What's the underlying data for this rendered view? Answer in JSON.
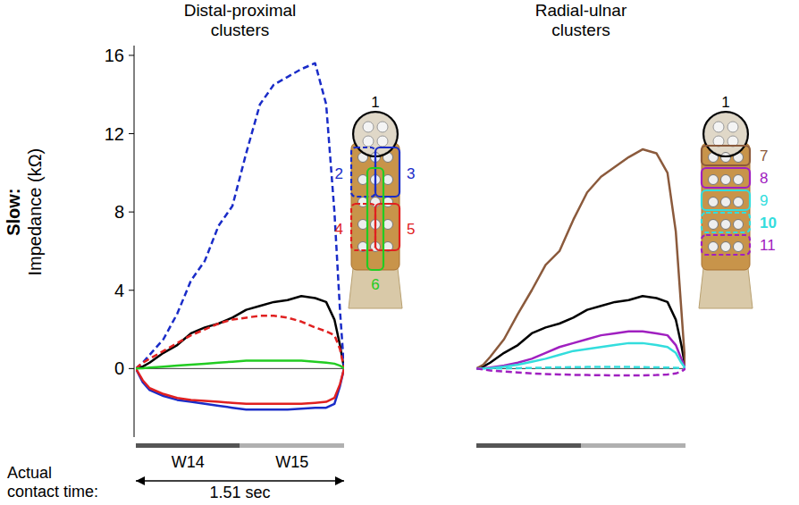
{
  "chart_data": [
    {
      "type": "line",
      "title": "Distal-proximal clusters",
      "ylabel": "Slow: Impedance (kΩ)",
      "x": [
        0,
        0.05,
        0.1,
        0.2,
        0.3,
        0.4,
        0.5,
        0.6,
        0.7,
        0.8,
        0.9,
        1.0,
        1.1,
        1.2,
        1.3,
        1.38,
        1.44,
        1.48,
        1.51
      ],
      "xlim": [
        0,
        1.51
      ],
      "ylim": [
        -3.5,
        16.5
      ],
      "yticks": [
        0,
        4,
        8,
        12,
        16
      ],
      "tick_labels": "y",
      "phases": [
        {
          "label": "W14",
          "start": 0,
          "end": 0.755
        },
        {
          "label": "W15",
          "start": 0.755,
          "end": 1.51
        }
      ],
      "contact_time": {
        "label": "Actual contact time:",
        "value": 1.51,
        "value_label": "1.51 sec"
      },
      "series": [
        {
          "name": "1",
          "color": "#000000",
          "line_style": "solid",
          "values": [
            0,
            0.1,
            0.3,
            0.8,
            1.2,
            1.8,
            2.1,
            2.3,
            2.6,
            3.0,
            3.2,
            3.4,
            3.5,
            3.7,
            3.6,
            3.4,
            2.5,
            1.2,
            0
          ]
        },
        {
          "name": "2",
          "color": "#1a2cc8",
          "line_style": "dashed",
          "values": [
            0,
            0.3,
            0.7,
            1.5,
            2.8,
            4.5,
            5.5,
            7.3,
            8.3,
            11.0,
            13.5,
            14.5,
            14.9,
            15.3,
            15.6,
            13.5,
            8,
            3,
            0
          ]
        },
        {
          "name": "3",
          "color": "#1a2cc8",
          "line_style": "solid",
          "values": [
            0,
            -0.7,
            -1.1,
            -1.4,
            -1.6,
            -1.7,
            -1.8,
            -1.9,
            -2.0,
            -2.1,
            -2.1,
            -2.1,
            -2.1,
            -2.05,
            -2.0,
            -2.0,
            -1.8,
            -0.9,
            0
          ]
        },
        {
          "name": "4",
          "color": "#e02020",
          "line_style": "dashed",
          "values": [
            0,
            0.3,
            0.5,
            0.9,
            1.3,
            1.7,
            2.0,
            2.3,
            2.5,
            2.6,
            2.7,
            2.7,
            2.6,
            2.4,
            2.1,
            1.9,
            1.7,
            1.0,
            0
          ]
        },
        {
          "name": "5",
          "color": "#e02020",
          "line_style": "solid",
          "values": [
            0,
            -0.6,
            -1.0,
            -1.3,
            -1.5,
            -1.6,
            -1.65,
            -1.7,
            -1.75,
            -1.8,
            -1.8,
            -1.8,
            -1.8,
            -1.8,
            -1.75,
            -1.7,
            -1.5,
            -0.8,
            0
          ]
        },
        {
          "name": "6",
          "color": "#22cc22",
          "line_style": "solid",
          "values": [
            0,
            0.02,
            0.05,
            0.1,
            0.15,
            0.2,
            0.25,
            0.3,
            0.35,
            0.4,
            0.4,
            0.4,
            0.4,
            0.4,
            0.35,
            0.3,
            0.25,
            0.15,
            0
          ]
        }
      ]
    },
    {
      "type": "line",
      "title": "Radial-ulnar clusters",
      "x": [
        0,
        0.05,
        0.1,
        0.2,
        0.3,
        0.4,
        0.5,
        0.6,
        0.7,
        0.8,
        0.9,
        1.0,
        1.1,
        1.2,
        1.3,
        1.38,
        1.44,
        1.48,
        1.51
      ],
      "xlim": [
        0,
        1.51
      ],
      "ylim": [
        -3.5,
        16.5
      ],
      "tick_labels": false,
      "phases": [
        {
          "start": 0,
          "end": 0.755
        },
        {
          "start": 0.755,
          "end": 1.51
        }
      ],
      "series": [
        {
          "name": "1",
          "color": "#000000",
          "line_style": "solid",
          "values": [
            0,
            0.1,
            0.3,
            0.8,
            1.2,
            1.8,
            2.1,
            2.3,
            2.6,
            3.0,
            3.2,
            3.4,
            3.5,
            3.7,
            3.6,
            3.4,
            2.5,
            1.2,
            0
          ]
        },
        {
          "name": "7",
          "color": "#8b5a3c",
          "line_style": "solid",
          "values": [
            0,
            0.2,
            0.6,
            1.5,
            2.8,
            4.0,
            5.3,
            6.0,
            7.6,
            9.0,
            9.8,
            10.3,
            10.8,
            11.2,
            11.0,
            10.0,
            7,
            3,
            0
          ]
        },
        {
          "name": "8",
          "color": "#a020c0",
          "line_style": "solid",
          "values": [
            0,
            0.02,
            0.05,
            0.15,
            0.3,
            0.5,
            0.8,
            1.1,
            1.3,
            1.5,
            1.7,
            1.8,
            1.9,
            1.9,
            1.8,
            1.7,
            1.2,
            0.5,
            0
          ]
        },
        {
          "name": "9",
          "color": "#33dddd",
          "line_style": "solid",
          "values": [
            0,
            0,
            0.02,
            0.1,
            0.2,
            0.35,
            0.5,
            0.7,
            0.9,
            1.0,
            1.1,
            1.2,
            1.3,
            1.3,
            1.2,
            1.1,
            0.8,
            0.3,
            0
          ]
        },
        {
          "name": "10",
          "color": "#33dddd",
          "line_style": "dashed",
          "values": [
            0,
            0,
            0,
            0,
            0.02,
            0.03,
            0.05,
            0.06,
            0.07,
            0.08,
            0.08,
            0.08,
            0.08,
            0.07,
            0.06,
            0.05,
            0.04,
            0.02,
            0
          ]
        },
        {
          "name": "11",
          "color": "#a020c0",
          "line_style": "dashed",
          "values": [
            0,
            -0.05,
            -0.1,
            -0.15,
            -0.2,
            -0.25,
            -0.28,
            -0.3,
            -0.32,
            -0.33,
            -0.34,
            -0.35,
            -0.35,
            -0.35,
            -0.33,
            -0.3,
            -0.25,
            -0.15,
            0
          ]
        }
      ]
    }
  ]
}
